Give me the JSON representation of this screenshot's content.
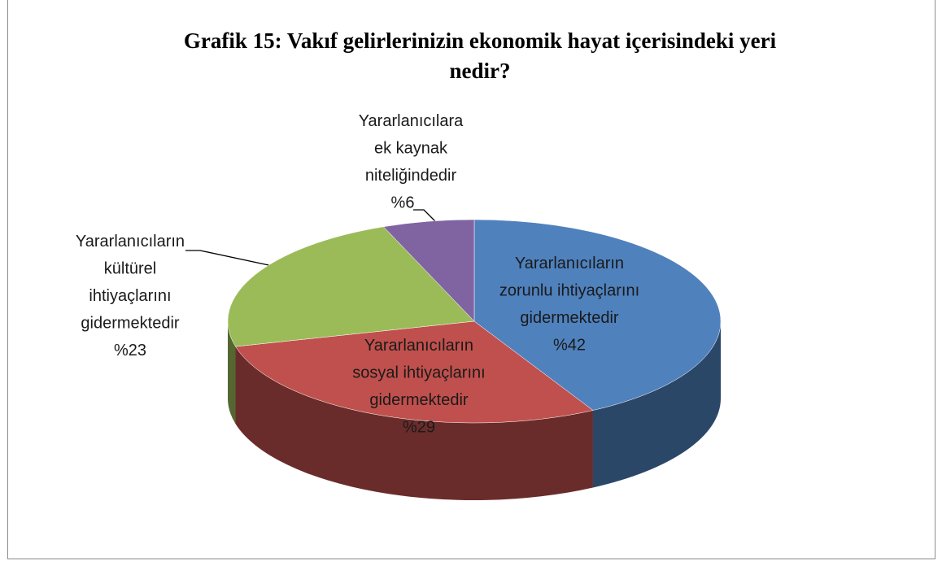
{
  "chart_data": {
    "type": "pie",
    "title": "Grafik 15: Vakıf gelirlerinizin ekonomik hayat içerisindeki yeri nedir?",
    "categories": [
      "Yararlanıcıların zorunlu ihtiyaçlarını gidermektedir",
      "Yararlanıcıların sosyal ihtiyaçlarını gidermektedir",
      "Yararlanıcıların kültürel ihtiyaçlarını gidermektedir",
      "Yararlanıcılara ek kaynak niteliğindedir"
    ],
    "values": [
      42,
      29,
      23,
      6
    ],
    "value_labels": [
      "%42",
      "%29",
      "%23",
      "%6"
    ],
    "colors": [
      "#4f81bd",
      "#c0504d",
      "#9bbb59",
      "#8064a2"
    ]
  }
}
